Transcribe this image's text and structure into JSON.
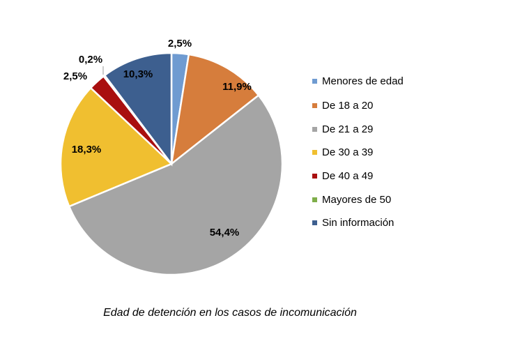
{
  "chart_data": {
    "type": "pie",
    "title": "Edad de detención en los casos de incomunicación",
    "legend_position": "right",
    "slices": [
      {
        "label": "Menores de edad",
        "value": 2.5,
        "display": "2,5%",
        "color": "#6f9bd1"
      },
      {
        "label": "De 18 a 20",
        "value": 11.9,
        "display": "11,9%",
        "color": "#d67d3c"
      },
      {
        "label": "De 21 a 29",
        "value": 54.4,
        "display": "54,4%",
        "color": "#a5a5a5"
      },
      {
        "label": "De 30 a 39",
        "value": 18.3,
        "display": "18,3%",
        "color": "#f0bf30"
      },
      {
        "label": "De 40 a 49",
        "value": 2.5,
        "display": "2,5%",
        "color": "#a90f0f"
      },
      {
        "label": "Mayores de 50",
        "value": 0.2,
        "display": "0,2%",
        "color": "#7fae4a"
      },
      {
        "label": "Sin información",
        "value": 10.3,
        "display": "10,3%",
        "color": "#3d5f8f"
      }
    ]
  }
}
